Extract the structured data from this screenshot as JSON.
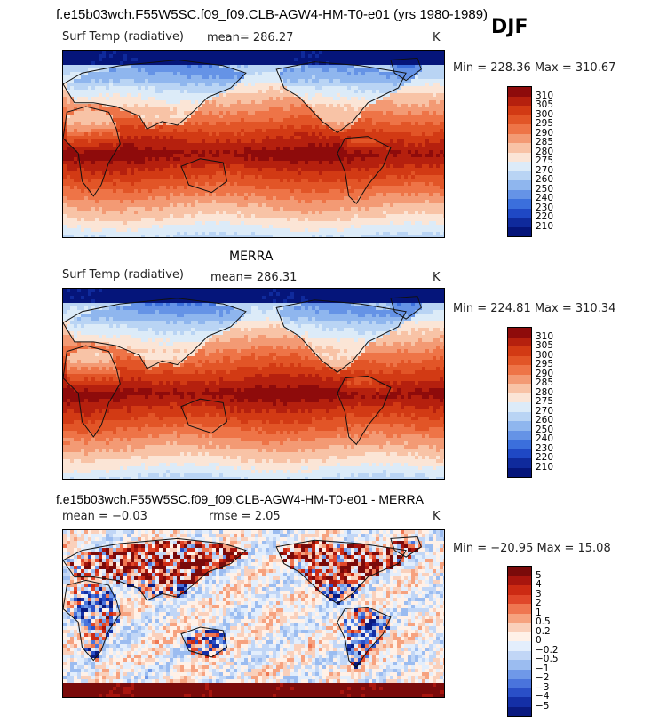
{
  "season": "DJF",
  "panels": [
    {
      "title": "f.e15b03wch.F55W5SC.f09_f09.CLB-AGW4-HM-T0-e01 (yrs 1980-1989)",
      "variable": "Surf Temp (radiative)",
      "stat": "mean= 286.27",
      "units": "K",
      "range": "Min = 228.36 Max = 310.67",
      "colorbar_labels": [
        "310",
        "305",
        "300",
        "295",
        "290",
        "285",
        "280",
        "275",
        "270",
        "260",
        "250",
        "240",
        "230",
        "220",
        "210"
      ]
    },
    {
      "title": "MERRA",
      "variable": "Surf Temp (radiative)",
      "stat": "mean= 286.31",
      "units": "K",
      "range": "Min = 224.81 Max = 310.34",
      "colorbar_labels": [
        "310",
        "305",
        "300",
        "295",
        "290",
        "285",
        "280",
        "275",
        "270",
        "260",
        "250",
        "240",
        "230",
        "220",
        "210"
      ]
    },
    {
      "title": "f.e15b03wch.F55W5SC.f09_f09.CLB-AGW4-HM-T0-e01 - MERRA",
      "mean_stat": "mean =   −0.03",
      "rmse_stat": "rmse =    2.05",
      "units": "K",
      "range": "Min = −20.95 Max =  15.08",
      "colorbar_labels": [
        "5",
        "4",
        "3",
        "2",
        "1",
        "0.5",
        "0.2",
        "0",
        "−0.2",
        "−0.5",
        "−1",
        "−2",
        "−3",
        "−4",
        "−5"
      ]
    }
  ],
  "colors": {
    "temp_scale": [
      "#8e0b0b",
      "#b5200e",
      "#d23a14",
      "#e25527",
      "#ee7447",
      "#f39a74",
      "#f8c3a6",
      "#fbe5d6",
      "#dcebf8",
      "#b9d4f4",
      "#8fb6ee",
      "#6593e6",
      "#3b6fdc",
      "#1f48c4",
      "#0f2a9c",
      "#05157a"
    ],
    "diff_scale": [
      "#7a0a0a",
      "#a8150e",
      "#cc2a13",
      "#e0472a",
      "#ef7651",
      "#f6a27f",
      "#fad0bb",
      "#fff1e8",
      "#e3eefc",
      "#c1d6f6",
      "#9bbcf0",
      "#6f98e8",
      "#4a74dc",
      "#2a4fc7",
      "#142fa6",
      "#0a1a80"
    ]
  }
}
